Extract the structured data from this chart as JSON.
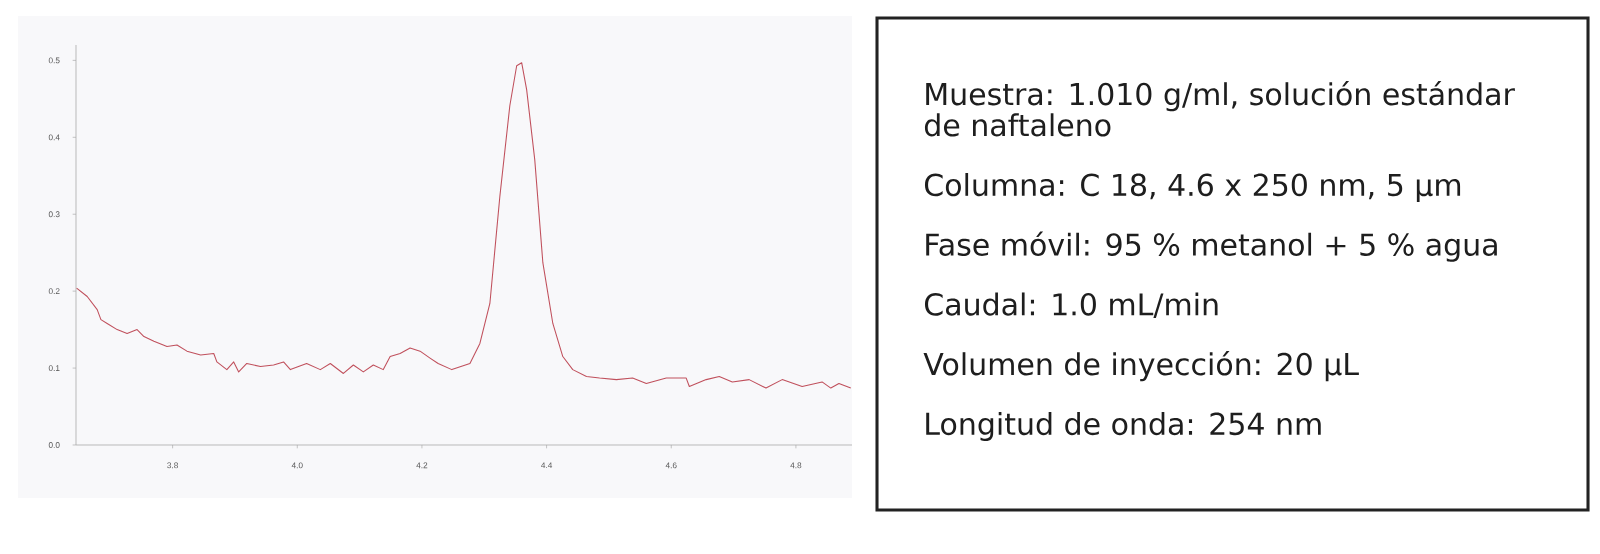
{
  "chart_data": [
    {
      "type": "line",
      "color": "#c0505c",
      "x": [
        3.646,
        3.663,
        3.679,
        3.685,
        3.695,
        3.711,
        3.727,
        3.743,
        3.754,
        3.77,
        3.791,
        3.807,
        3.823,
        3.845,
        3.866,
        3.871,
        3.887,
        3.898,
        3.906,
        3.919,
        3.941,
        3.962,
        3.978,
        3.989,
        4.015,
        4.037,
        4.053,
        4.074,
        4.09,
        4.106,
        4.122,
        4.138,
        4.149,
        4.165,
        4.181,
        4.197,
        4.213,
        4.226,
        4.248,
        4.277,
        4.293,
        4.309,
        4.325,
        4.341,
        4.352,
        4.36,
        4.368,
        4.381,
        4.394,
        4.41,
        4.426,
        4.442,
        4.464,
        4.485,
        4.512,
        4.538,
        4.56,
        4.592,
        4.624,
        4.629,
        4.656,
        4.677,
        4.698,
        4.725,
        4.752,
        4.778,
        4.81,
        4.842,
        4.856,
        4.869,
        4.888
      ],
      "values": [
        0.204,
        0.193,
        0.176,
        0.163,
        0.158,
        0.15,
        0.145,
        0.15,
        0.141,
        0.135,
        0.128,
        0.13,
        0.122,
        0.117,
        0.119,
        0.108,
        0.098,
        0.108,
        0.095,
        0.106,
        0.102,
        0.104,
        0.108,
        0.098,
        0.106,
        0.098,
        0.106,
        0.093,
        0.104,
        0.095,
        0.104,
        0.098,
        0.115,
        0.119,
        0.126,
        0.122,
        0.113,
        0.106,
        0.098,
        0.106,
        0.132,
        0.184,
        0.323,
        0.441,
        0.493,
        0.497,
        0.462,
        0.371,
        0.237,
        0.158,
        0.115,
        0.098,
        0.089,
        0.087,
        0.085,
        0.087,
        0.08,
        0.087,
        0.087,
        0.076,
        0.085,
        0.089,
        0.082,
        0.085,
        0.074,
        0.085,
        0.076,
        0.082,
        0.074,
        0.08,
        0.074
      ],
      "xlim": [
        3.645,
        4.89
      ],
      "ylim": [
        0,
        0.52
      ],
      "xticks": [
        {
          "value": 3.8,
          "label": "3.8"
        },
        {
          "value": 4.0,
          "label": "4.0"
        },
        {
          "value": 4.2,
          "label": "4.2"
        },
        {
          "value": 4.4,
          "label": "4.4"
        },
        {
          "value": 4.6,
          "label": "4.6"
        },
        {
          "value": 4.8,
          "label": "4.8"
        }
      ],
      "yticks": [
        {
          "value": 0.0,
          "label": "0.0"
        },
        {
          "value": 0.1,
          "label": "0.1"
        },
        {
          "value": 0.2,
          "label": "0.2"
        },
        {
          "value": 0.3,
          "label": "0.3"
        },
        {
          "value": 0.4,
          "label": "0.4"
        },
        {
          "value": 0.5,
          "label": "0.5"
        }
      ]
    },
    {
      "type": "other",
      "annotations": [
        "Muestra: 1.010 g/ml, solución estándar de naftaleno",
        "Columna: C 18, 4.6 x 250 nm, 5 µm",
        "Fase móvil: 95 % metanol + 5 % agua",
        "Caudal: 1.0 mL/min",
        "Volumen de inyección: 20 µL",
        "Longitud de onda: 254 nm"
      ]
    }
  ]
}
